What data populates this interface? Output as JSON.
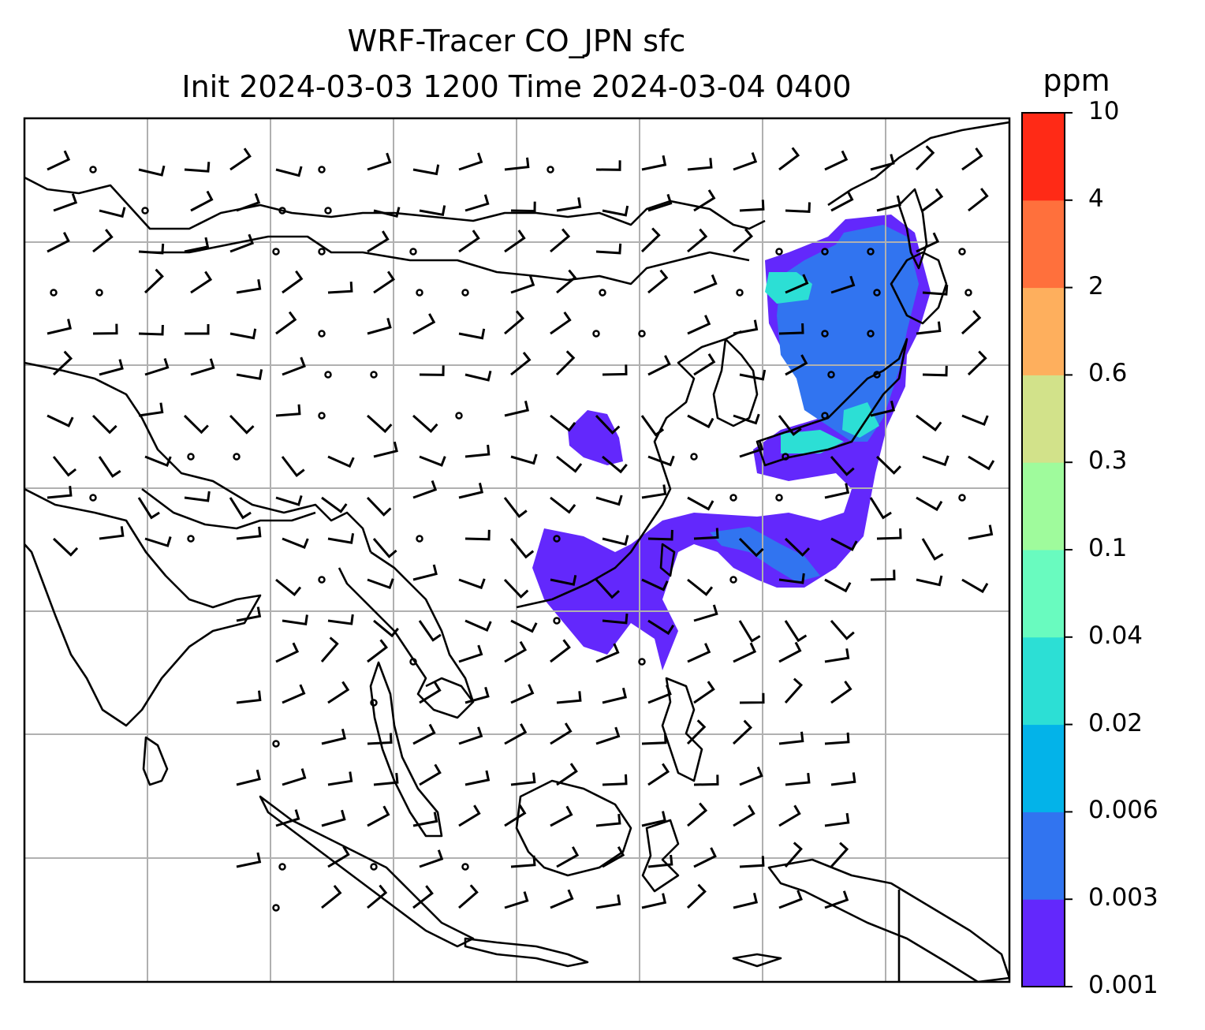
{
  "title": {
    "line1": "WRF-Tracer CO_JPN sfc",
    "line2": "Init 2024-03-03 1200 Time 2024-03-04 0400"
  },
  "colorbar": {
    "unit": "ppm",
    "levels": [
      "0.001",
      "0.003",
      "0.006",
      "0.02",
      "0.04",
      "0.1",
      "0.3",
      "0.6",
      "2",
      "4",
      "10"
    ],
    "colors": [
      "#6328fc",
      "#3174f0",
      "#03b3e9",
      "#2cdfd5",
      "#69fbbf",
      "#9ffb9c",
      "#d2e28a",
      "#feaf5d",
      "#ff703c",
      "#ff2a16"
    ]
  },
  "map": {
    "gridlines": true,
    "features": [
      "coastlines",
      "country-borders",
      "wind-barbs",
      "tracer-concentration-fill"
    ]
  },
  "tracer_regions": [
    {
      "region": "Japan / Sakhalin",
      "range_ppm": [
        0.001,
        0.1
      ]
    },
    {
      "region": "Central China",
      "range_ppm": [
        0.001,
        0.003
      ]
    },
    {
      "region": "South China / Taiwan / Pacific plume",
      "range_ppm": [
        0.001,
        0.006
      ]
    }
  ]
}
